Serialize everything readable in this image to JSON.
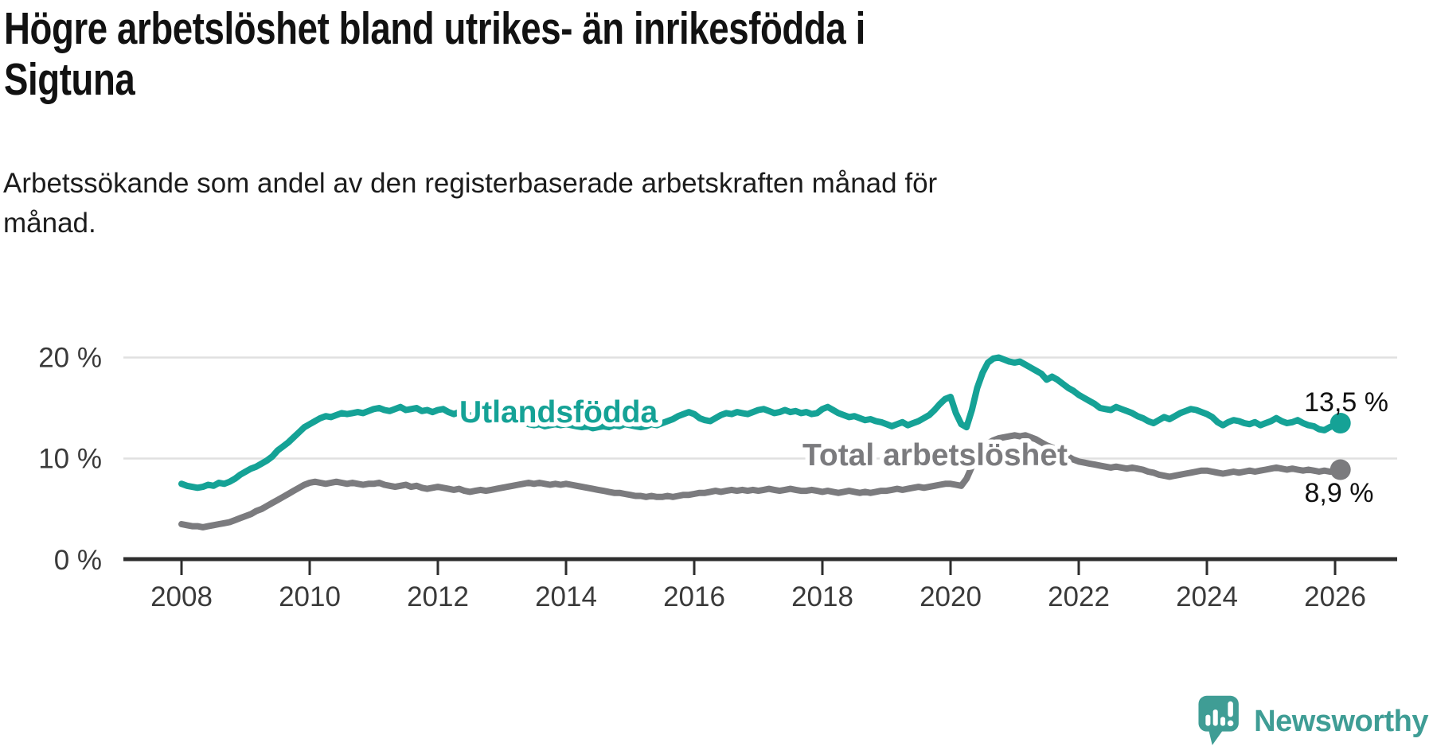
{
  "chart_data": {
    "type": "line",
    "title": "Högre arbetslöshet bland utrikes- än inrikesfödda i Sigtuna",
    "title_lines": [
      "Högre arbetslöshet bland utrikes- än inrikesfödda i",
      "Sigtuna"
    ],
    "subtitle": "Arbetssökande som andel av den registerbaserade arbetskraften månad för månad.",
    "subtitle_lines": [
      "Arbetssökande som andel av den registerbaserade arbetskraften månad för",
      "månad."
    ],
    "xlabel": "",
    "ylabel": "",
    "x_unit": "monthly, year fractions from Jan 2008 to Feb 2026",
    "x_start": 2008.0,
    "x_step": 0.0833,
    "x_ticks": [
      2008,
      2010,
      2012,
      2014,
      2016,
      2018,
      2020,
      2022,
      2024,
      2026
    ],
    "y_ticks": [
      {
        "value": 0,
        "label": "0 %"
      },
      {
        "value": 10,
        "label": "10 %"
      },
      {
        "value": 20,
        "label": "20 %"
      }
    ],
    "ylim": [
      0,
      22
    ],
    "grid": "horizontal",
    "legend": "inline-labels",
    "series": [
      {
        "name": "Utlandsfödda",
        "color": "#15a296",
        "end_label": "13,5 %",
        "end_value": 13.5,
        "values": [
          7.5,
          7.3,
          7.2,
          7.1,
          7.2,
          7.4,
          7.3,
          7.6,
          7.5,
          7.7,
          8.0,
          8.4,
          8.7,
          9.0,
          9.2,
          9.5,
          9.8,
          10.2,
          10.8,
          11.2,
          11.6,
          12.1,
          12.6,
          13.1,
          13.4,
          13.7,
          14.0,
          14.2,
          14.1,
          14.3,
          14.5,
          14.4,
          14.5,
          14.6,
          14.5,
          14.7,
          14.9,
          15.0,
          14.8,
          14.7,
          14.9,
          15.1,
          14.8,
          14.9,
          15.0,
          14.7,
          14.8,
          14.6,
          14.8,
          14.9,
          14.6,
          14.4,
          14.6,
          14.4,
          14.2,
          14.5,
          14.3,
          14.1,
          13.9,
          13.8,
          13.9,
          13.7,
          13.6,
          13.5,
          13.6,
          13.4,
          13.3,
          13.4,
          13.2,
          13.3,
          13.4,
          13.3,
          13.4,
          13.3,
          13.2,
          13.1,
          13.2,
          13.0,
          13.1,
          13.2,
          13.1,
          13.3,
          13.2,
          13.4,
          13.3,
          13.2,
          13.1,
          13.2,
          13.4,
          13.3,
          13.5,
          13.7,
          13.9,
          14.2,
          14.4,
          14.6,
          14.4,
          14.0,
          13.8,
          13.7,
          14.0,
          14.3,
          14.5,
          14.4,
          14.6,
          14.5,
          14.4,
          14.6,
          14.8,
          14.9,
          14.7,
          14.5,
          14.6,
          14.8,
          14.6,
          14.7,
          14.5,
          14.6,
          14.4,
          14.5,
          14.9,
          15.1,
          14.8,
          14.5,
          14.3,
          14.1,
          14.2,
          14.0,
          13.8,
          13.9,
          13.7,
          13.6,
          13.4,
          13.2,
          13.4,
          13.6,
          13.3,
          13.5,
          13.7,
          14.0,
          14.3,
          14.8,
          15.4,
          15.9,
          16.1,
          14.5,
          13.4,
          13.1,
          14.8,
          17.0,
          18.5,
          19.5,
          19.9,
          20.0,
          19.8,
          19.6,
          19.5,
          19.6,
          19.3,
          19.0,
          18.7,
          18.4,
          17.8,
          18.1,
          17.8,
          17.4,
          17.0,
          16.7,
          16.3,
          16.0,
          15.7,
          15.4,
          15.0,
          14.9,
          14.8,
          15.1,
          14.9,
          14.7,
          14.5,
          14.2,
          14.0,
          13.7,
          13.5,
          13.8,
          14.1,
          13.9,
          14.2,
          14.5,
          14.7,
          14.9,
          14.8,
          14.6,
          14.4,
          14.1,
          13.6,
          13.3,
          13.6,
          13.8,
          13.7,
          13.5,
          13.4,
          13.6,
          13.3,
          13.5,
          13.7,
          14.0,
          13.7,
          13.5,
          13.6,
          13.8,
          13.5,
          13.3,
          13.2,
          12.9,
          12.8,
          13.1,
          13.3,
          13.5
        ]
      },
      {
        "name": "Total arbetslöshet",
        "color": "#7b7b7e",
        "end_label": "8,9 %",
        "end_value": 8.9,
        "values": [
          3.5,
          3.4,
          3.3,
          3.3,
          3.2,
          3.3,
          3.4,
          3.5,
          3.6,
          3.7,
          3.9,
          4.1,
          4.3,
          4.5,
          4.8,
          5.0,
          5.3,
          5.6,
          5.9,
          6.2,
          6.5,
          6.8,
          7.1,
          7.4,
          7.6,
          7.7,
          7.6,
          7.5,
          7.6,
          7.7,
          7.6,
          7.5,
          7.6,
          7.5,
          7.4,
          7.5,
          7.5,
          7.6,
          7.4,
          7.3,
          7.2,
          7.3,
          7.4,
          7.2,
          7.3,
          7.1,
          7.0,
          7.1,
          7.2,
          7.1,
          7.0,
          6.9,
          7.0,
          6.8,
          6.7,
          6.8,
          6.9,
          6.8,
          6.9,
          7.0,
          7.1,
          7.2,
          7.3,
          7.4,
          7.5,
          7.6,
          7.5,
          7.6,
          7.5,
          7.4,
          7.5,
          7.4,
          7.5,
          7.4,
          7.3,
          7.2,
          7.1,
          7.0,
          6.9,
          6.8,
          6.7,
          6.6,
          6.6,
          6.5,
          6.4,
          6.3,
          6.3,
          6.2,
          6.3,
          6.2,
          6.2,
          6.3,
          6.2,
          6.3,
          6.4,
          6.4,
          6.5,
          6.6,
          6.6,
          6.7,
          6.8,
          6.7,
          6.8,
          6.9,
          6.8,
          6.9,
          6.8,
          6.9,
          6.8,
          6.9,
          7.0,
          6.9,
          6.8,
          6.9,
          7.0,
          6.9,
          6.8,
          6.8,
          6.9,
          6.8,
          6.7,
          6.8,
          6.7,
          6.6,
          6.7,
          6.8,
          6.7,
          6.6,
          6.7,
          6.6,
          6.7,
          6.8,
          6.8,
          6.9,
          7.0,
          6.9,
          7.0,
          7.1,
          7.2,
          7.1,
          7.2,
          7.3,
          7.4,
          7.5,
          7.5,
          7.4,
          7.3,
          8.0,
          9.2,
          10.3,
          11.0,
          11.5,
          11.8,
          12.0,
          12.1,
          12.2,
          12.3,
          12.2,
          12.3,
          12.1,
          11.9,
          11.6,
          11.3,
          11.1,
          10.8,
          10.5,
          10.2,
          9.9,
          9.7,
          9.6,
          9.5,
          9.4,
          9.3,
          9.2,
          9.1,
          9.2,
          9.1,
          9.0,
          9.1,
          9.0,
          8.9,
          8.7,
          8.6,
          8.4,
          8.3,
          8.2,
          8.3,
          8.4,
          8.5,
          8.6,
          8.7,
          8.8,
          8.8,
          8.7,
          8.6,
          8.5,
          8.6,
          8.7,
          8.6,
          8.7,
          8.8,
          8.7,
          8.8,
          8.9,
          9.0,
          9.1,
          9.0,
          8.9,
          9.0,
          8.9,
          8.8,
          8.9,
          8.8,
          8.7,
          8.8,
          8.7,
          8.7,
          8.9
        ]
      }
    ]
  },
  "branding": {
    "logo_text": "Newsworthy",
    "logo_color": "#3f9d95",
    "icon": "speech-bubble-chart-icon"
  }
}
